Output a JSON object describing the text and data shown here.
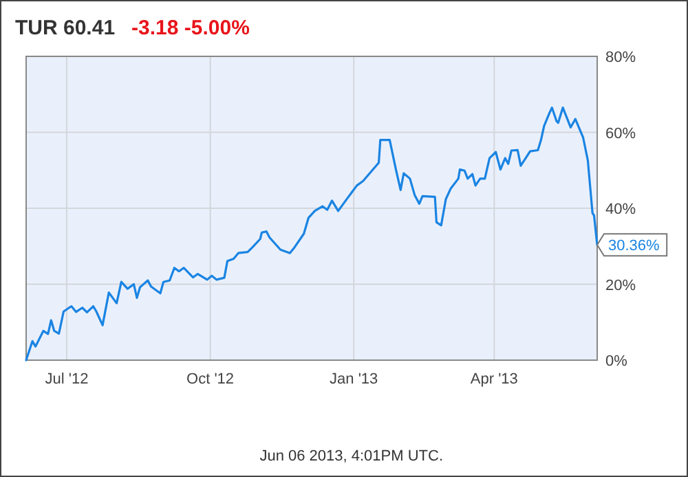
{
  "chart_data": {
    "type": "line",
    "title": "TUR  60.41",
    "subtitle": "-3.18  -5.00%",
    "x": [
      "2012-06-05",
      "2012-06-09",
      "2012-06-11",
      "2012-06-16",
      "2012-06-19",
      "2012-06-21",
      "2012-06-23",
      "2012-06-26",
      "2012-06-29",
      "2012-07-04",
      "2012-07-07",
      "2012-07-11",
      "2012-07-14",
      "2012-07-18",
      "2012-07-20",
      "2012-07-24",
      "2012-07-28",
      "2012-08-02",
      "2012-08-05",
      "2012-08-09",
      "2012-08-13",
      "2012-08-15",
      "2012-08-17",
      "2012-08-22",
      "2012-08-24",
      "2012-08-30",
      "2012-09-01",
      "2012-09-05",
      "2012-09-08",
      "2012-09-11",
      "2012-09-14",
      "2012-09-20",
      "2012-09-23",
      "2012-09-29",
      "2012-10-02",
      "2012-10-05",
      "2012-10-10",
      "2012-10-12",
      "2012-10-16",
      "2012-10-19",
      "2012-10-25",
      "2012-10-28",
      "2012-11-02",
      "2012-11-03",
      "2012-11-06",
      "2012-11-08",
      "2012-11-15",
      "2012-11-21",
      "2012-11-24",
      "2012-11-30",
      "2012-12-03",
      "2012-12-07",
      "2012-12-12",
      "2012-12-15",
      "2012-12-18",
      "2012-12-22",
      "2012-12-28",
      "2013-01-03",
      "2013-01-07",
      "2013-01-12",
      "2013-01-17",
      "2013-01-18",
      "2013-01-24",
      "2013-01-28",
      "2013-01-31",
      "2013-02-02",
      "2013-02-06",
      "2013-02-09",
      "2013-02-12",
      "2013-02-14",
      "2013-02-22",
      "2013-02-23",
      "2013-02-26",
      "2013-03-01",
      "2013-03-04",
      "2013-03-09",
      "2013-03-10",
      "2013-03-13",
      "2013-03-15",
      "2013-03-18",
      "2013-03-20",
      "2013-03-23",
      "2013-03-26",
      "2013-03-29",
      "2013-04-02",
      "2013-04-05",
      "2013-04-08",
      "2013-04-10",
      "2013-04-12",
      "2013-04-16",
      "2013-04-18",
      "2013-04-24",
      "2013-04-29",
      "2013-05-01",
      "2013-05-03",
      "2013-05-06",
      "2013-05-08",
      "2013-05-11",
      "2013-05-12",
      "2013-05-15",
      "2013-05-20",
      "2013-05-23",
      "2013-05-28",
      "2013-05-31",
      "2013-06-03",
      "2013-06-04",
      "2013-06-06"
    ],
    "series": [
      {
        "color": "#1a84e3",
        "values": [
          0,
          5,
          3.6,
          7.7,
          6.9,
          10.5,
          7.7,
          7,
          12.8,
          14.2,
          12.7,
          13.8,
          12.6,
          14.2,
          12.8,
          9.2,
          17.8,
          15,
          20.6,
          18.8,
          20,
          16.4,
          19.2,
          21,
          19.4,
          17.6,
          20.6,
          21,
          24.3,
          23.4,
          24.3,
          21.8,
          22.7,
          21.2,
          22.2,
          21.2,
          21.7,
          26.1,
          26.7,
          28.2,
          28.5,
          29.7,
          31.9,
          33.6,
          33.9,
          32.3,
          29.1,
          28.2,
          29.7,
          33.3,
          37.5,
          39.3,
          40.5,
          39.6,
          42,
          39.3,
          42.7,
          46,
          47.2,
          49.6,
          52,
          58,
          58,
          50.2,
          44.8,
          49.2,
          47.8,
          43.5,
          41.2,
          43.2,
          43,
          36.3,
          35.5,
          42.4,
          45.1,
          47.8,
          50.2,
          49.9,
          47.8,
          49,
          46,
          47.8,
          47.8,
          53.2,
          54.8,
          50.2,
          53.2,
          51.7,
          55.2,
          55.3,
          51.2,
          55,
          55.3,
          58,
          61.7,
          64.7,
          66.5,
          62.9,
          62.5,
          66.5,
          61.3,
          63.5,
          58.6,
          52.6,
          38.7,
          38.1,
          30.36
        ]
      }
    ],
    "xlim": [
      "2012-06-05",
      "2013-06-06"
    ],
    "xticks": [
      {
        "value": "2012-07-01",
        "label": "Jul '12"
      },
      {
        "value": "2012-10-01",
        "label": "Oct '12"
      },
      {
        "value": "2013-01-01",
        "label": "Jan '13"
      },
      {
        "value": "2013-04-01",
        "label": "Apr '13"
      }
    ],
    "ylim": [
      0,
      80
    ],
    "yticks": [
      {
        "value": 0,
        "label": "0%"
      },
      {
        "value": 20,
        "label": "20%"
      },
      {
        "value": 40,
        "label": "40%"
      },
      {
        "value": 60,
        "label": "60%"
      },
      {
        "value": 80,
        "label": "80%"
      }
    ],
    "grid": true,
    "annotations": [
      {
        "text": "30.36%",
        "x": "2013-06-06",
        "y": 30.36
      },
      "Jun 06 2013, 4:01PM UTC."
    ]
  }
}
